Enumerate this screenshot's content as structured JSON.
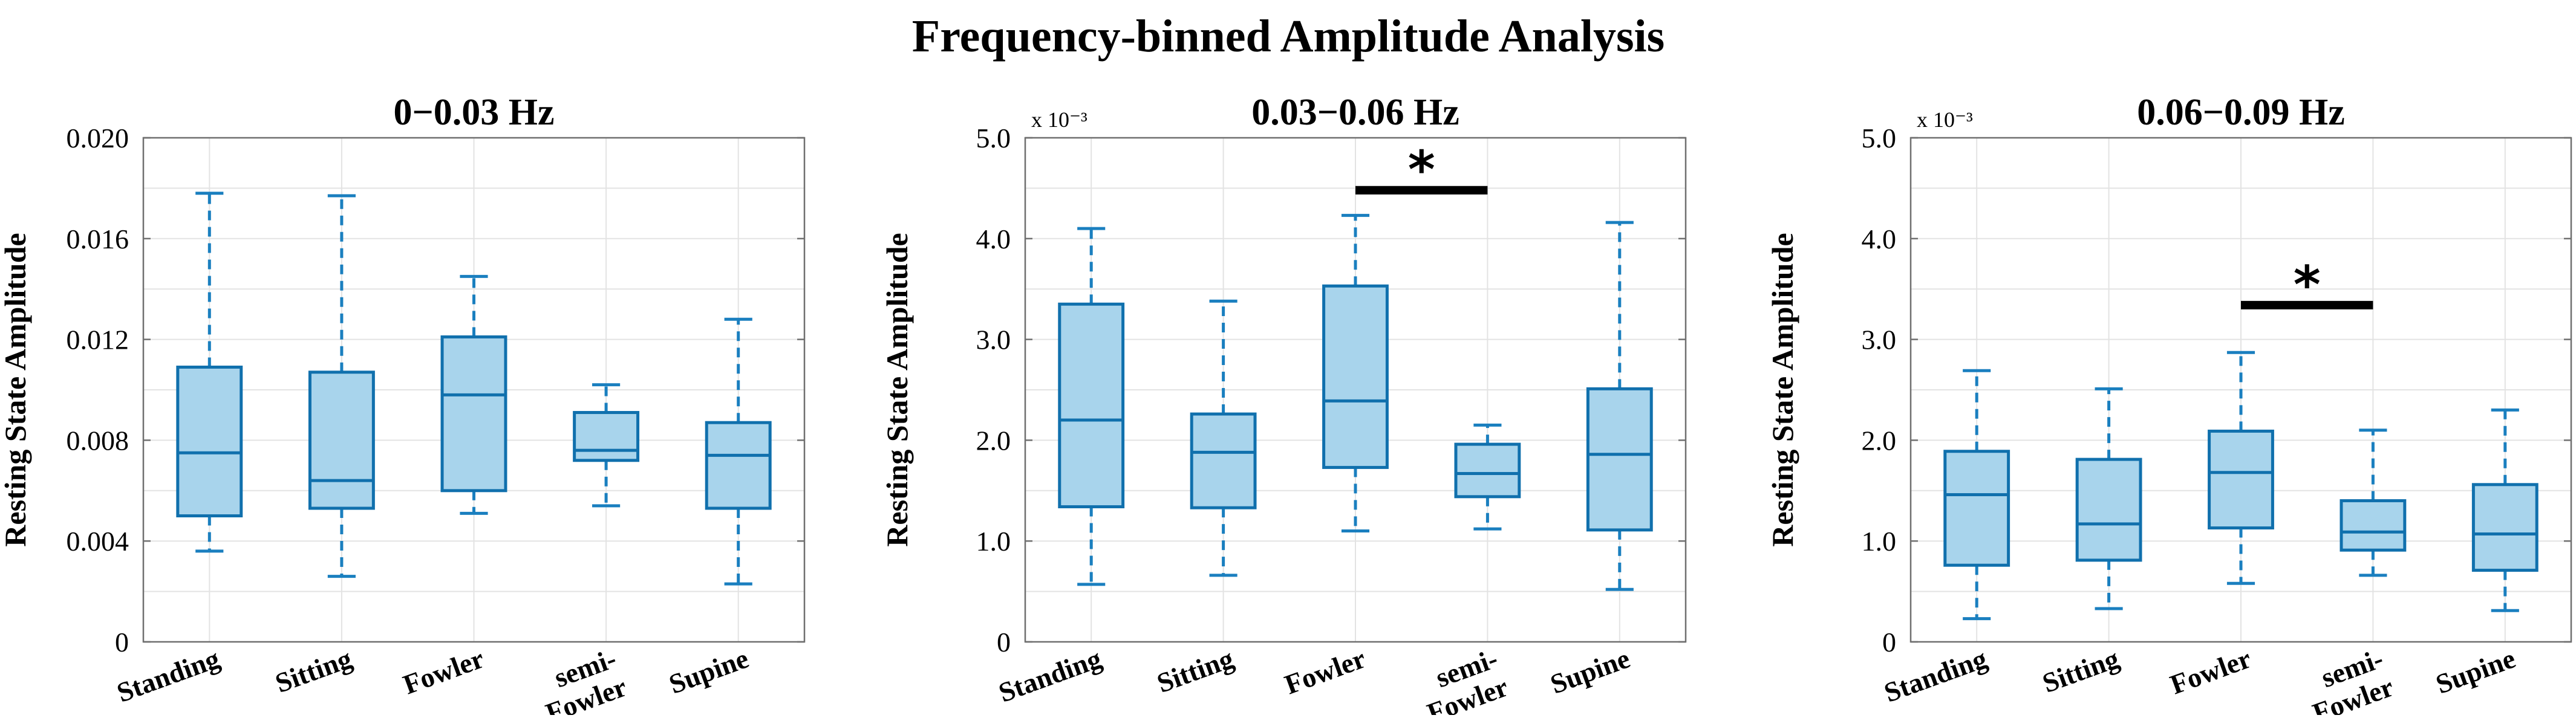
{
  "figure_title": "Frequency-binned Amplitude Analysis",
  "colors": {
    "box_fill": "#a8d4ec",
    "box_edge": "#1070ad",
    "whisker": "#1a7fbf",
    "significance_bar": "#000000"
  },
  "chart_data": [
    {
      "type": "box",
      "title": "0−0.03 Hz",
      "ylabel": "Resting State Amplitude",
      "xlabel": "",
      "ylim": [
        0,
        0.02
      ],
      "yticks": [
        0,
        0.004,
        0.008,
        0.012,
        0.016,
        0.02
      ],
      "ytick_labels": [
        "0",
        "0.004",
        "0.008",
        "0.012",
        "0.016",
        "0.020"
      ],
      "exponent_label": "",
      "grid": true,
      "categories": [
        "Standing",
        "Sitting",
        "Fowler",
        "semi-Fowler",
        "Supine"
      ],
      "tick_lines": [
        [
          "Standing"
        ],
        [
          "Sitting"
        ],
        [
          "Fowler"
        ],
        [
          "semi-",
          "Fowler"
        ],
        [
          "Supine"
        ]
      ],
      "boxes": [
        {
          "whisker_low": 0.0036,
          "q1": 0.005,
          "median": 0.0075,
          "q3": 0.0109,
          "whisker_high": 0.0178
        },
        {
          "whisker_low": 0.0026,
          "q1": 0.0053,
          "median": 0.0064,
          "q3": 0.0107,
          "whisker_high": 0.0177
        },
        {
          "whisker_low": 0.0051,
          "q1": 0.006,
          "median": 0.0098,
          "q3": 0.0121,
          "whisker_high": 0.0145
        },
        {
          "whisker_low": 0.0054,
          "q1": 0.0072,
          "median": 0.0076,
          "q3": 0.0091,
          "whisker_high": 0.0102
        },
        {
          "whisker_low": 0.0023,
          "q1": 0.0053,
          "median": 0.0074,
          "q3": 0.0087,
          "whisker_high": 0.0128
        }
      ],
      "significance": []
    },
    {
      "type": "box",
      "title": "0.03−0.06 Hz",
      "ylabel": "Resting State Amplitude",
      "xlabel": "",
      "ylim": [
        0,
        5.0
      ],
      "yticks": [
        0,
        1.0,
        2.0,
        3.0,
        4.0,
        5.0
      ],
      "ytick_labels": [
        "0",
        "1.0",
        "2.0",
        "3.0",
        "4.0",
        "5.0"
      ],
      "exponent_label": "x 10⁻³",
      "grid": true,
      "categories": [
        "Standing",
        "Sitting",
        "Fowler",
        "semi-Fowler",
        "Supine"
      ],
      "tick_lines": [
        [
          "Standing"
        ],
        [
          "Sitting"
        ],
        [
          "Fowler"
        ],
        [
          "semi-",
          "Fowler"
        ],
        [
          "Supine"
        ]
      ],
      "boxes": [
        {
          "whisker_low": 0.57,
          "q1": 1.34,
          "median": 2.2,
          "q3": 3.35,
          "whisker_high": 4.1
        },
        {
          "whisker_low": 0.66,
          "q1": 1.33,
          "median": 1.88,
          "q3": 2.26,
          "whisker_high": 3.38
        },
        {
          "whisker_low": 1.1,
          "q1": 1.73,
          "median": 2.39,
          "q3": 3.53,
          "whisker_high": 4.23
        },
        {
          "whisker_low": 1.12,
          "q1": 1.44,
          "median": 1.67,
          "q3": 1.96,
          "whisker_high": 2.15
        },
        {
          "whisker_low": 0.52,
          "q1": 1.11,
          "median": 1.86,
          "q3": 2.51,
          "whisker_high": 4.16
        }
      ],
      "significance": [
        {
          "from": "Fowler",
          "to": "semi-Fowler",
          "y": 4.48,
          "label": "*"
        }
      ]
    },
    {
      "type": "box",
      "title": "0.06−0.09 Hz",
      "ylabel": "Resting State Amplitude",
      "xlabel": "",
      "ylim": [
        0,
        5.0
      ],
      "yticks": [
        0,
        1.0,
        2.0,
        3.0,
        4.0,
        5.0
      ],
      "ytick_labels": [
        "0",
        "1.0",
        "2.0",
        "3.0",
        "4.0",
        "5.0"
      ],
      "exponent_label": "x 10⁻³",
      "grid": true,
      "categories": [
        "Standing",
        "Sitting",
        "Fowler",
        "semi-Fowler",
        "Supine"
      ],
      "tick_lines": [
        [
          "Standing"
        ],
        [
          "Sitting"
        ],
        [
          "Fowler"
        ],
        [
          "semi-",
          "Fowler"
        ],
        [
          "Supine"
        ]
      ],
      "boxes": [
        {
          "whisker_low": 0.23,
          "q1": 0.76,
          "median": 1.46,
          "q3": 1.89,
          "whisker_high": 2.69
        },
        {
          "whisker_low": 0.33,
          "q1": 0.81,
          "median": 1.17,
          "q3": 1.81,
          "whisker_high": 2.51
        },
        {
          "whisker_low": 0.58,
          "q1": 1.13,
          "median": 1.68,
          "q3": 2.09,
          "whisker_high": 2.87
        },
        {
          "whisker_low": 0.66,
          "q1": 0.91,
          "median": 1.09,
          "q3": 1.4,
          "whisker_high": 2.1
        },
        {
          "whisker_low": 0.31,
          "q1": 0.71,
          "median": 1.07,
          "q3": 1.56,
          "whisker_high": 2.3
        }
      ],
      "significance": [
        {
          "from": "Fowler",
          "to": "semi-Fowler",
          "y": 3.34,
          "label": "*"
        }
      ]
    }
  ]
}
